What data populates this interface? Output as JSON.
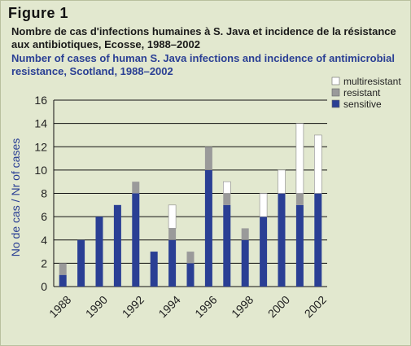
{
  "figure_label": "Figure 1",
  "title_fr": "Nombre de cas d'infections humaines à S. Java et incidence de la résistance aux antibiotiques, Ecosse, 1988–2002",
  "title_en": "Number of cases of human S. Java infections and incidence of antimicrobial resistance, Scotland, 1988–2002",
  "colors": {
    "background": "#e2e8cf",
    "sensitive": "#2a3f94",
    "resistant": "#9a9a9a",
    "multiresistant": "#ffffff",
    "title_blue": "#2a3f94"
  },
  "chart_data": {
    "type": "bar",
    "stacked": true,
    "ylabel": "No de cas / Nr of cases",
    "ylim": [
      0,
      16
    ],
    "yticks": [
      0,
      2,
      4,
      6,
      8,
      10,
      12,
      14,
      16
    ],
    "grid": true,
    "legend_position": "top-right",
    "categories": [
      "1988",
      "1989",
      "1990",
      "1991",
      "1992",
      "1993",
      "1994",
      "1995",
      "1996",
      "1997",
      "1998",
      "1999",
      "2000",
      "2001",
      "2002"
    ],
    "xtick_labels": [
      "1988",
      "1990",
      "1992",
      "1994",
      "1996",
      "1998",
      "2000",
      "2002"
    ],
    "series": [
      {
        "name": "sensitive",
        "color": "#2a3f94",
        "values": [
          1,
          4,
          6,
          7,
          8,
          3,
          4,
          2,
          10,
          7,
          4,
          6,
          8,
          7,
          8
        ]
      },
      {
        "name": "resistant",
        "color": "#9a9a9a",
        "values": [
          1,
          0,
          0,
          0,
          1,
          0,
          1,
          1,
          2,
          1,
          1,
          0,
          0,
          1,
          0
        ]
      },
      {
        "name": "multiresistant",
        "color": "#ffffff",
        "values": [
          0,
          0,
          0,
          0,
          0,
          0,
          2,
          0,
          0,
          1,
          0,
          2,
          2,
          6,
          5
        ]
      }
    ],
    "legend_order": [
      "multiresistant",
      "resistant",
      "sensitive"
    ]
  }
}
